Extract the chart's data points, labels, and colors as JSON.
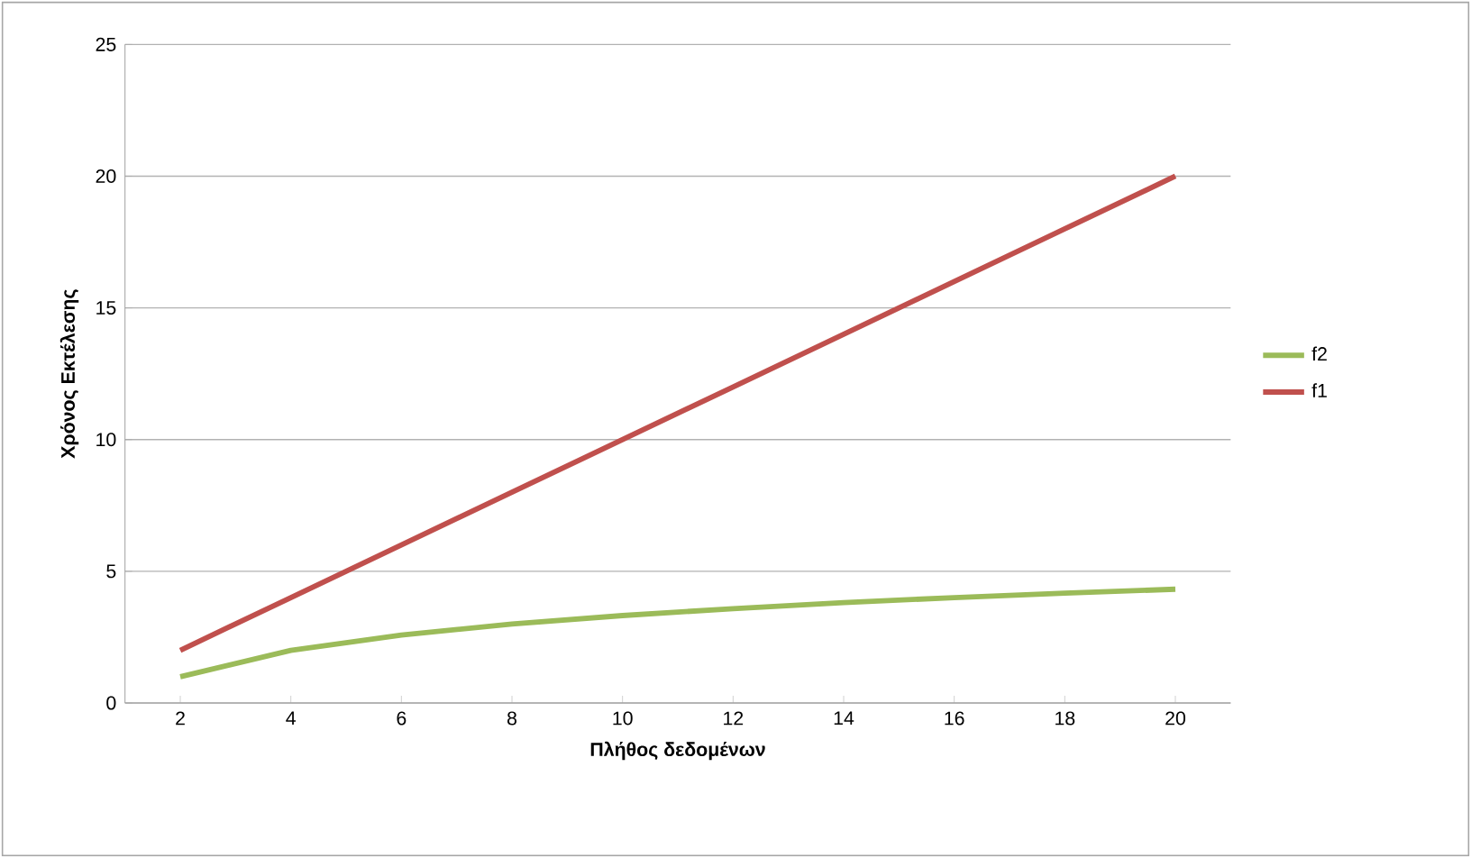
{
  "chart_data": {
    "type": "line",
    "xlabel": "Πλήθος δεδομένων",
    "ylabel": "Χρόνος Εκτέλεσης",
    "categories": [
      "2",
      "4",
      "6",
      "8",
      "10",
      "12",
      "14",
      "16",
      "18",
      "20"
    ],
    "series": [
      {
        "name": "f2",
        "color": "#9bbb59",
        "values": [
          1,
          2,
          2.58,
          3,
          3.32,
          3.58,
          3.81,
          4,
          4.17,
          4.32
        ]
      },
      {
        "name": "f1",
        "color": "#c0504d",
        "values": [
          2,
          4,
          6,
          8,
          10,
          12,
          14,
          16,
          18,
          20
        ]
      }
    ],
    "ylim": [
      0,
      25
    ],
    "yticks": [
      0,
      5,
      10,
      15,
      20,
      25
    ],
    "grid": "y",
    "legend": "right",
    "marker": "none",
    "line_style": "solid"
  }
}
